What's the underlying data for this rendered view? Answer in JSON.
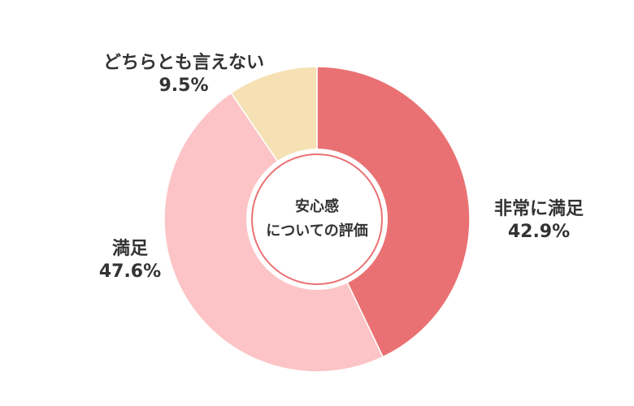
{
  "chart_data": {
    "type": "pie",
    "donut": true,
    "center_text": [
      "安心感",
      "についての評価"
    ],
    "slices": [
      {
        "label": "非常に満足",
        "value": 42.9,
        "value_text": "42.9%",
        "color": "#ea7173"
      },
      {
        "label": "満足",
        "value": 47.6,
        "value_text": "47.6%",
        "color": "#fcc4c6"
      },
      {
        "label": "どちらとも言えない",
        "value": 9.5,
        "value_text": "9.5%",
        "color": "#f5e1b3"
      }
    ]
  }
}
